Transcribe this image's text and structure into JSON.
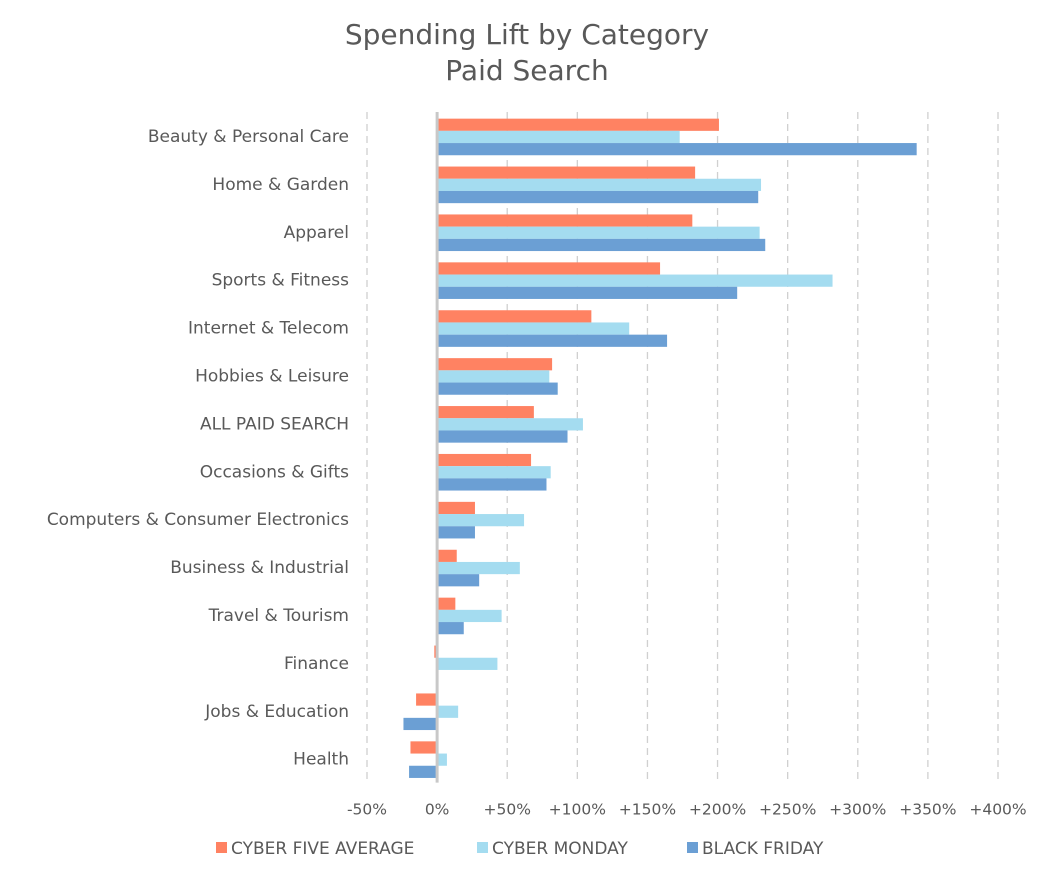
{
  "chart_data": {
    "type": "bar",
    "orientation": "horizontal",
    "title": "Spending Lift by Category",
    "subtitle": "Paid Search",
    "categories": [
      "Beauty & Personal Care",
      "Home & Garden",
      "Apparel",
      "Sports & Fitness",
      "Internet & Telecom",
      "Hobbies & Leisure",
      "ALL PAID SEARCH",
      "Occasions & Gifts",
      "Computers & Consumer Electronics",
      "Business & Industrial",
      "Travel & Tourism",
      "Finance",
      "Jobs & Education",
      "Health"
    ],
    "series": [
      {
        "name": "CYBER FIVE AVERAGE",
        "color": "#ff8262",
        "values": [
          201,
          184,
          182,
          159,
          110,
          82,
          69,
          67,
          27,
          14,
          13,
          -2,
          -15,
          -19
        ]
      },
      {
        "name": "CYBER MONDAY",
        "color": "#a4dcf0",
        "values": [
          173,
          231,
          230,
          282,
          137,
          80,
          104,
          81,
          62,
          59,
          46,
          43,
          15,
          7
        ]
      },
      {
        "name": "BLACK FRIDAY",
        "color": "#6b9fd4",
        "values": [
          342,
          229,
          234,
          214,
          164,
          86,
          93,
          78,
          27,
          30,
          19,
          0,
          -24,
          -20
        ]
      }
    ],
    "xlim": [
      -50,
      400
    ],
    "x_ticks": [
      -50,
      0,
      50,
      100,
      150,
      200,
      250,
      300,
      350,
      400
    ],
    "x_tick_labels": [
      "-50%",
      "0%",
      "+50%",
      "+100%",
      "+150%",
      "+200%",
      "+250%",
      "+300%",
      "+350%",
      "+400%"
    ],
    "grid": "vertical-dashed",
    "legend_position": "bottom"
  }
}
